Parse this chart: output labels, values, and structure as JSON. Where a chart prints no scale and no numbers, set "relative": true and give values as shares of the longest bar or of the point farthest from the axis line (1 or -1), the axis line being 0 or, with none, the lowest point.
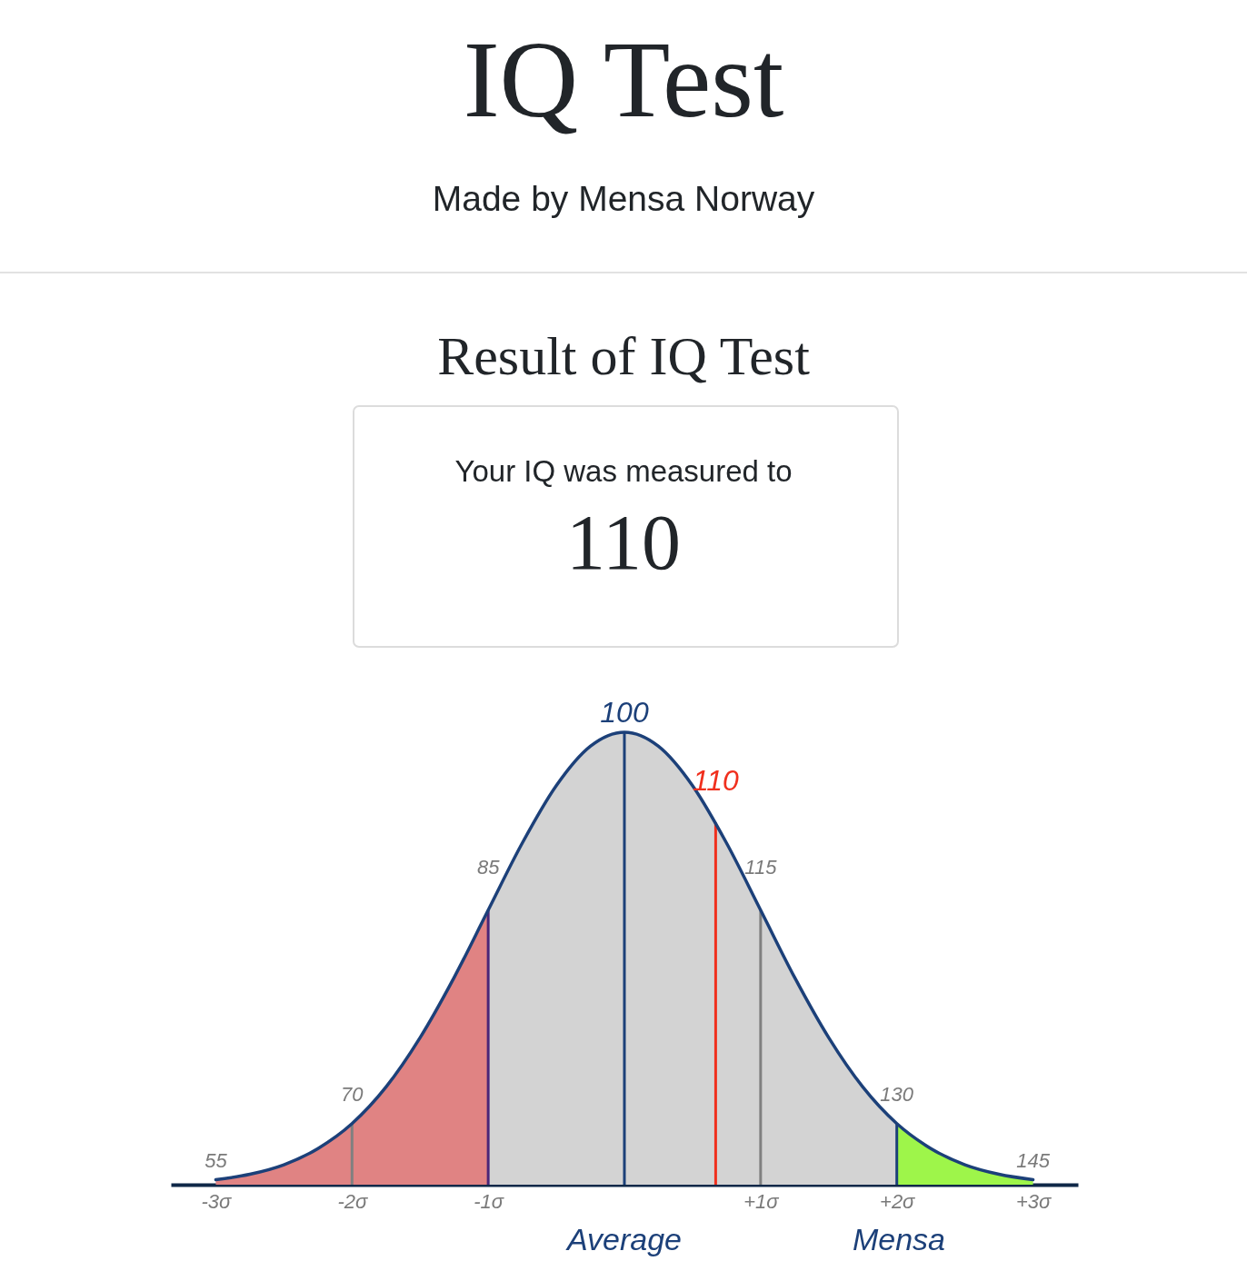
{
  "chart_data": {
    "type": "area",
    "title": "IQ Test",
    "subtitle": "Made by Mensa Norway",
    "relative": true,
    "marker": "none",
    "xlim": [
      -3.33,
      3.33
    ],
    "xticks": [
      {
        "value": -3,
        "label": "-3σ"
      },
      {
        "value": -2,
        "label": "-2σ"
      },
      {
        "value": -1,
        "label": "-1σ"
      },
      {
        "value": 1,
        "label": "+1σ"
      },
      {
        "value": 2,
        "label": "+2σ"
      },
      {
        "value": 3,
        "label": "+3σ"
      }
    ],
    "series": [
      {
        "color": "#d3d3d3",
        "x": [
          -1,
          -0.75,
          -0.5,
          -0.25,
          0,
          0.25,
          0.5,
          0.75,
          1,
          1.25,
          1.5,
          1.75,
          2
        ],
        "values": [
          0.607,
          0.755,
          0.882,
          0.969,
          1,
          0.969,
          0.882,
          0.755,
          0.607,
          0.458,
          0.325,
          0.216,
          0.135
        ]
      },
      {
        "color": "#e08383",
        "x": [
          -3,
          -2.75,
          -2.5,
          -2.25,
          -2,
          -1.75,
          -1.5,
          -1.25,
          -1
        ],
        "values": [
          0.011,
          0.023,
          0.044,
          0.08,
          0.135,
          0.216,
          0.325,
          0.458,
          0.607
        ]
      },
      {
        "color": "#9ef54a",
        "x": [
          2,
          2.25,
          2.5,
          2.75,
          3
        ],
        "values": [
          0.135,
          0.08,
          0.044,
          0.023,
          0.011
        ]
      },
      {
        "type": "bar",
        "x": [
          -2,
          -1,
          1,
          2
        ],
        "values": [
          0.135,
          0.607,
          0.607,
          0.135
        ],
        "colors": [
          "#808080",
          "#4a2577",
          "#808080",
          "#1c4079"
        ]
      },
      {
        "type": "bar",
        "x": [
          0,
          0.67
        ],
        "values": [
          1,
          0.8
        ],
        "colors": [
          "#1c4079",
          "#f0301e"
        ]
      },
      {
        "type": "line",
        "color": "#1c4079",
        "x": [
          -3,
          -2.75,
          -2.5,
          -2.25,
          -2,
          -1.75,
          -1.5,
          -1.25,
          -1,
          -0.75,
          -0.5,
          -0.25,
          0,
          0.25,
          0.5,
          0.75,
          1,
          1.25,
          1.5,
          1.75,
          2,
          2.25,
          2.5,
          2.75,
          3
        ],
        "values": [
          0.011,
          0.023,
          0.044,
          0.08,
          0.135,
          0.216,
          0.325,
          0.458,
          0.607,
          0.755,
          0.882,
          0.969,
          1,
          0.969,
          0.882,
          0.755,
          0.607,
          0.458,
          0.325,
          0.216,
          0.135,
          0.08,
          0.044,
          0.023,
          0.011
        ]
      }
    ],
    "annotations": [
      {
        "text": "55",
        "x": -3,
        "y": 0.011
      },
      {
        "text": "70",
        "x": -2,
        "y": 0.135
      },
      {
        "text": "85",
        "x": -1,
        "y": 0.607
      },
      {
        "text": "100",
        "x": 0,
        "y": 1
      },
      {
        "text": "110",
        "x": 0.67,
        "y": 0.8
      },
      {
        "text": "115",
        "x": 1,
        "y": 0.607
      },
      {
        "text": "130",
        "x": 2,
        "y": 0.135
      },
      {
        "text": "145",
        "x": 3,
        "y": 0.011
      },
      "Result of IQ Test",
      "Your IQ was measured to",
      "110",
      "Average",
      "Mensa"
    ]
  }
}
